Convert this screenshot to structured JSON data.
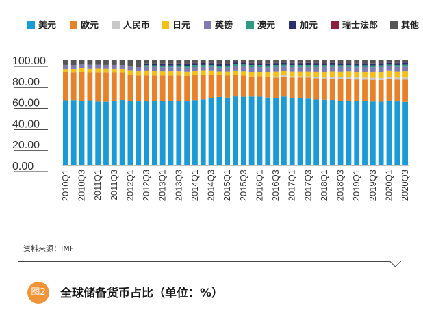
{
  "legend": [
    {
      "name": "美元",
      "color": "#1a9ad6"
    },
    {
      "name": "欧元",
      "color": "#e8822a"
    },
    {
      "name": "人民币",
      "color": "#c8c8c8"
    },
    {
      "name": "日元",
      "color": "#f5c016"
    },
    {
      "name": "英镑",
      "color": "#7f7ab0"
    },
    {
      "name": "澳元",
      "color": "#2f9c80"
    },
    {
      "name": "加元",
      "color": "#2a2f6e"
    },
    {
      "name": "瑞士法郎",
      "color": "#8a1f3e"
    },
    {
      "name": "其他",
      "color": "#555555"
    }
  ],
  "source": "资料来源：IMF",
  "figure": {
    "badge": "图2",
    "title": "全球储备货币占比（单位：%）"
  },
  "chart_data": {
    "type": "bar",
    "stacked": true,
    "title": "",
    "xlabel": "",
    "ylabel": "",
    "ylim": [
      0,
      100
    ],
    "yticks": [
      "0.00",
      "20.00",
      "40.00",
      "60.00",
      "80.00",
      "100.00"
    ],
    "categories": [
      "2010Q1",
      "2010Q2",
      "2010Q3",
      "2010Q4",
      "2011Q1",
      "2011Q2",
      "2011Q3",
      "2011Q4",
      "2012Q1",
      "2012Q2",
      "2012Q3",
      "2012Q4",
      "2013Q1",
      "2013Q2",
      "2013Q3",
      "2013Q4",
      "2014Q1",
      "2014Q2",
      "2014Q3",
      "2014Q4",
      "2015Q1",
      "2015Q2",
      "2015Q3",
      "2015Q4",
      "2016Q1",
      "2016Q2",
      "2016Q3",
      "2016Q4",
      "2017Q1",
      "2017Q2",
      "2017Q3",
      "2017Q4",
      "2018Q1",
      "2018Q2",
      "2018Q3",
      "2018Q4",
      "2019Q1",
      "2019Q2",
      "2019Q3",
      "2019Q4",
      "2020Q1",
      "2020Q2",
      "2020Q3"
    ],
    "xtick_labels": [
      "2010Q1",
      "2010Q3",
      "2011Q1",
      "2011Q3",
      "2012Q1",
      "2012Q3",
      "2013Q1",
      "2013Q3",
      "2014Q1",
      "2014Q3",
      "2015Q1",
      "2015Q3",
      "2016Q1",
      "2016Q3",
      "2017Q1",
      "2017Q3",
      "2018Q1",
      "2018Q3",
      "2019Q1",
      "2019Q3",
      "2020Q1",
      "2020Q3"
    ],
    "series": [
      {
        "name": "美元",
        "values": [
          62.0,
          62.2,
          61.5,
          62.0,
          60.8,
          60.6,
          61.5,
          62.3,
          61.3,
          61.0,
          61.4,
          61.3,
          61.7,
          61.7,
          61.3,
          61.0,
          62.2,
          62.8,
          63.9,
          65.0,
          64.5,
          65.5,
          65.2,
          65.4,
          65.3,
          64.5,
          64.0,
          65.4,
          64.3,
          63.9,
          63.5,
          62.7,
          62.5,
          62.3,
          61.6,
          61.7,
          61.5,
          61.3,
          60.9,
          60.7,
          61.9,
          61.0,
          60.5
        ]
      },
      {
        "name": "欧元",
        "values": [
          26.5,
          26.0,
          27.0,
          26.0,
          27.3,
          27.5,
          26.5,
          25.7,
          24.7,
          24.5,
          24.2,
          24.2,
          23.8,
          23.8,
          24.3,
          24.3,
          23.5,
          23.2,
          22.0,
          20.8,
          20.9,
          20.4,
          20.3,
          19.2,
          19.5,
          19.5,
          19.6,
          19.1,
          19.3,
          19.7,
          20.1,
          20.2,
          20.2,
          20.3,
          20.5,
          20.6,
          20.2,
          20.3,
          20.5,
          20.6,
          20.2,
          20.5,
          21.0
        ]
      },
      {
        "name": "人民币",
        "values": [
          0,
          0,
          0,
          0,
          0,
          0,
          0,
          0,
          0,
          0,
          0,
          0,
          0,
          0,
          0,
          0,
          0,
          0,
          0,
          0,
          0,
          0,
          0,
          0,
          0,
          0,
          1.1,
          1.1,
          1.1,
          1.1,
          1.1,
          1.2,
          1.4,
          1.8,
          1.8,
          1.9,
          1.9,
          2.0,
          2.0,
          1.9,
          2.0,
          2.0,
          2.1
        ]
      },
      {
        "name": "日元",
        "values": [
          3.0,
          3.4,
          3.7,
          3.7,
          3.8,
          3.6,
          3.6,
          3.6,
          4.0,
          4.0,
          4.1,
          4.1,
          4.0,
          4.0,
          3.9,
          3.8,
          3.9,
          3.9,
          3.9,
          3.5,
          3.8,
          3.8,
          3.9,
          4.0,
          4.0,
          4.5,
          4.5,
          4.0,
          4.5,
          4.5,
          4.5,
          4.9,
          4.8,
          4.9,
          5.2,
          5.2,
          5.3,
          5.4,
          5.6,
          5.7,
          5.7,
          5.7,
          5.9
        ]
      },
      {
        "name": "英镑",
        "values": [
          4.0,
          3.8,
          3.9,
          3.9,
          3.9,
          3.8,
          3.9,
          3.8,
          4.0,
          4.0,
          4.0,
          4.0,
          3.9,
          3.9,
          3.9,
          3.9,
          3.9,
          3.8,
          3.8,
          3.7,
          3.9,
          4.6,
          4.7,
          4.9,
          4.7,
          4.6,
          4.4,
          4.4,
          4.3,
          4.4,
          4.4,
          4.5,
          4.7,
          4.5,
          4.5,
          4.4,
          4.4,
          4.5,
          4.4,
          4.6,
          4.4,
          4.5,
          4.5
        ]
      },
      {
        "name": "澳元",
        "values": [
          0,
          0,
          0,
          0,
          0,
          0,
          0,
          0,
          0,
          0,
          1.6,
          1.5,
          1.5,
          1.6,
          1.7,
          1.8,
          1.9,
          1.8,
          1.8,
          1.8,
          1.8,
          1.8,
          1.8,
          1.9,
          1.8,
          1.8,
          1.8,
          1.7,
          1.8,
          1.8,
          1.8,
          1.8,
          1.7,
          1.7,
          1.6,
          1.6,
          1.7,
          1.7,
          1.7,
          1.7,
          1.6,
          1.7,
          1.8
        ]
      },
      {
        "name": "加元",
        "values": [
          0,
          0,
          0,
          0,
          0,
          0,
          0,
          0,
          0,
          0,
          1.4,
          1.5,
          1.8,
          1.8,
          1.8,
          1.9,
          1.9,
          1.9,
          1.9,
          1.9,
          1.9,
          1.9,
          1.8,
          1.8,
          1.9,
          1.9,
          1.9,
          2.0,
          2.0,
          1.9,
          2.0,
          2.0,
          1.9,
          1.9,
          1.9,
          1.8,
          1.9,
          1.9,
          1.9,
          1.9,
          1.9,
          1.9,
          2.0
        ]
      },
      {
        "name": "瑞士法郎",
        "values": [
          0,
          0,
          0,
          0,
          0,
          0,
          0,
          0,
          0,
          0,
          0.2,
          0.2,
          0.2,
          0.2,
          0.2,
          0.3,
          0.3,
          0.3,
          0.3,
          0.3,
          0.3,
          0.3,
          0.3,
          0.3,
          0.2,
          0.2,
          0.2,
          0.2,
          0.2,
          0.2,
          0.2,
          0.2,
          0.2,
          0.2,
          0.2,
          0.2,
          0.2,
          0.2,
          0.2,
          0.2,
          0.2,
          0.2,
          0.2
        ]
      }
    ],
    "other_series": {
      "name": "其他",
      "color": "#555555"
    },
    "grid": false,
    "legend_position": "top"
  }
}
